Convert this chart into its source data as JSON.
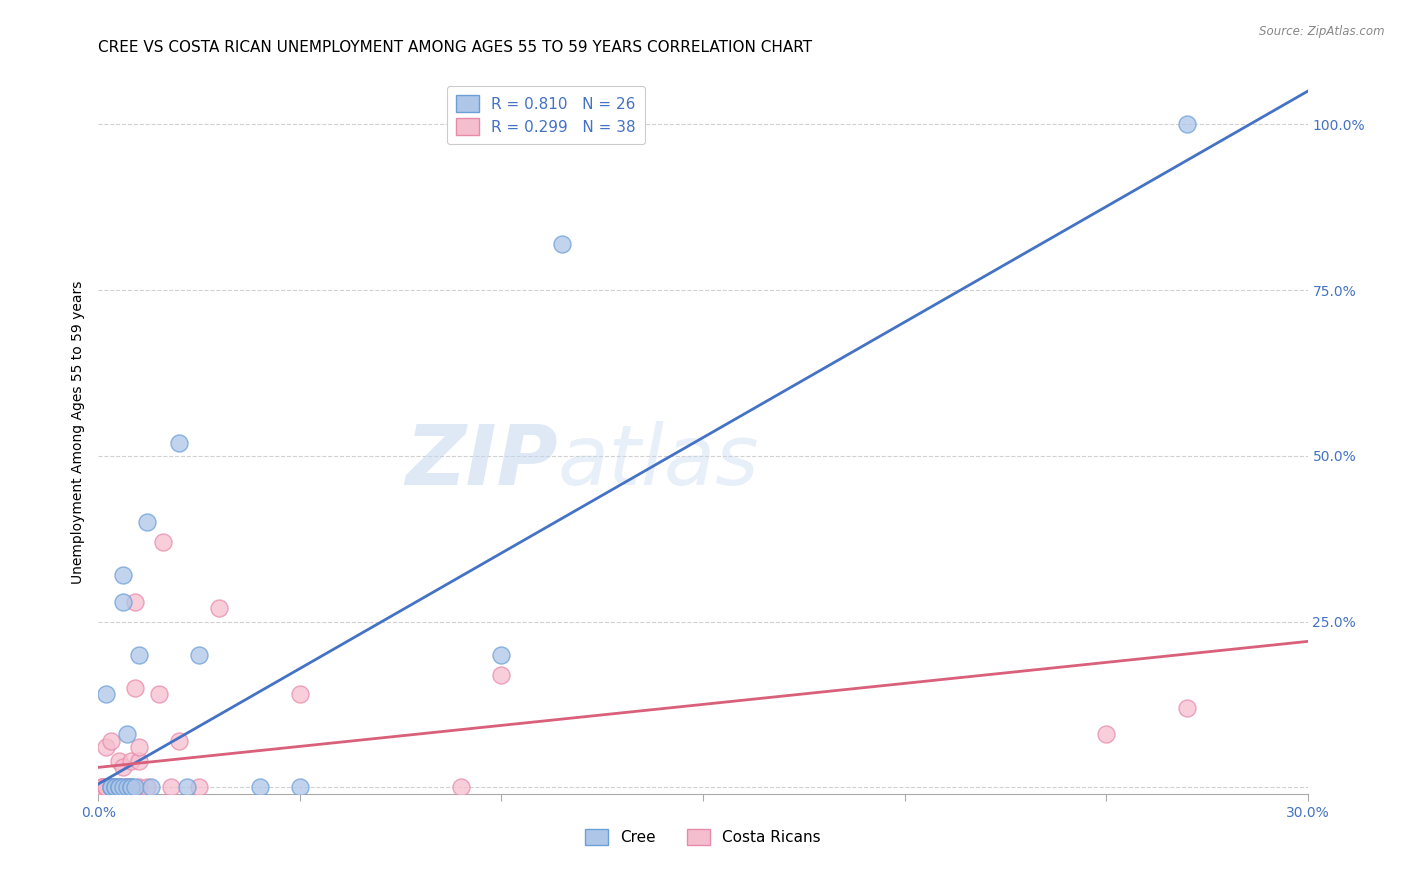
{
  "title": "CREE VS COSTA RICAN UNEMPLOYMENT AMONG AGES 55 TO 59 YEARS CORRELATION CHART",
  "source": "Source: ZipAtlas.com",
  "ylabel": "Unemployment Among Ages 55 to 59 years",
  "xlim": [
    0.0,
    0.3
  ],
  "ylim": [
    -0.01,
    1.08
  ],
  "xticks": [
    0.0,
    0.05,
    0.1,
    0.15,
    0.2,
    0.25,
    0.3
  ],
  "xtick_labels": [
    "0.0%",
    "",
    "",
    "",
    "",
    "",
    "30.0%"
  ],
  "yticks_right": [
    0.0,
    0.25,
    0.5,
    0.75,
    1.0
  ],
  "ytick_labels_right": [
    "",
    "25.0%",
    "50.0%",
    "75.0%",
    "100.0%"
  ],
  "cree_color": "#aec6e8",
  "cree_edge_color": "#6a9fd8",
  "cree_line_color": "#4472c4",
  "costa_color": "#f5bece",
  "costa_edge_color": "#e88aaa",
  "costa_line_color": "#d9607a",
  "cree_R": 0.81,
  "cree_N": 26,
  "costa_R": 0.299,
  "costa_N": 38,
  "cree_line_x0": 0.0,
  "cree_line_y0": 0.005,
  "cree_line_x1": 0.3,
  "cree_line_y1": 1.05,
  "costa_line_x0": 0.0,
  "costa_line_y0": 0.03,
  "costa_line_x1": 0.3,
  "costa_line_y1": 0.22,
  "cree_scatter_x": [
    0.002,
    0.003,
    0.003,
    0.004,
    0.004,
    0.005,
    0.005,
    0.006,
    0.006,
    0.006,
    0.007,
    0.007,
    0.008,
    0.008,
    0.009,
    0.01,
    0.012,
    0.013,
    0.02,
    0.022,
    0.025,
    0.04,
    0.05,
    0.1,
    0.115,
    0.27
  ],
  "cree_scatter_y": [
    0.14,
    0.0,
    0.0,
    0.0,
    0.0,
    0.0,
    0.0,
    0.0,
    0.28,
    0.32,
    0.0,
    0.08,
    0.0,
    0.0,
    0.0,
    0.2,
    0.4,
    0.0,
    0.52,
    0.0,
    0.2,
    0.0,
    0.0,
    0.2,
    0.82,
    1.0
  ],
  "costa_scatter_x": [
    0.001,
    0.001,
    0.001,
    0.002,
    0.002,
    0.002,
    0.002,
    0.003,
    0.003,
    0.003,
    0.004,
    0.004,
    0.005,
    0.005,
    0.005,
    0.006,
    0.006,
    0.007,
    0.007,
    0.008,
    0.008,
    0.009,
    0.009,
    0.01,
    0.01,
    0.01,
    0.012,
    0.015,
    0.016,
    0.018,
    0.02,
    0.025,
    0.03,
    0.05,
    0.09,
    0.1,
    0.25,
    0.27
  ],
  "costa_scatter_y": [
    0.0,
    0.0,
    0.0,
    0.0,
    0.0,
    0.0,
    0.06,
    0.0,
    0.0,
    0.07,
    0.0,
    0.0,
    0.0,
    0.0,
    0.04,
    0.0,
    0.03,
    0.0,
    0.0,
    0.0,
    0.04,
    0.15,
    0.28,
    0.0,
    0.04,
    0.06,
    0.0,
    0.14,
    0.37,
    0.0,
    0.07,
    0.0,
    0.27,
    0.14,
    0.0,
    0.17,
    0.08,
    0.12
  ],
  "grid_color": "#cccccc",
  "background_color": "#ffffff",
  "title_fontsize": 11,
  "axis_label_fontsize": 10,
  "tick_fontsize": 10,
  "legend_text_color": "#4472c4",
  "tick_color": "#4472c4"
}
